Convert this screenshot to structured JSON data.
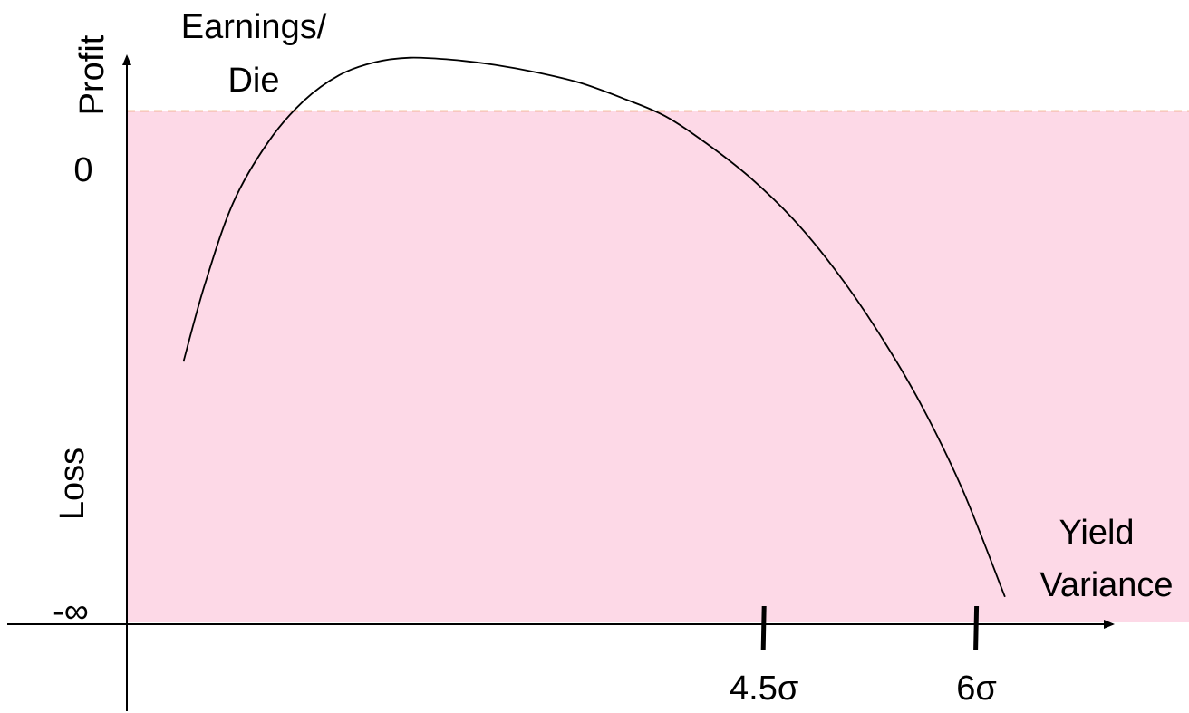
{
  "chart_data": {
    "type": "line",
    "y_title": [
      "Earnings/",
      "Die"
    ],
    "y_upper_label": "Profit",
    "y_lower_label": "Loss",
    "x_title": [
      "Yield",
      "Variance"
    ],
    "y_zero_label": "0",
    "y_bottom_label": "-∞",
    "x_ticks": [
      {
        "label": "4.5σ",
        "value": 4.5
      },
      {
        "label": "6σ",
        "value": 6
      }
    ],
    "x_range": [
      0,
      7.5
    ],
    "y_range": [
      -1,
      0.1
    ],
    "loss_region": {
      "from": -1,
      "to": 0,
      "color": "#fdd9e7"
    },
    "zero_line_color": "#e8904a",
    "series": [
      {
        "color": "#000000",
        "x": [
          0.4,
          0.55,
          0.75,
          1.0,
          1.25,
          1.5,
          1.75,
          2.0,
          2.3,
          2.6,
          2.9,
          3.2,
          3.5,
          3.8,
          4.1,
          4.4,
          4.7,
          5.0,
          5.3,
          5.6,
          5.9,
          6.2
        ],
        "y": [
          -0.49,
          -0.34,
          -0.18,
          -0.06,
          0.02,
          0.07,
          0.095,
          0.104,
          0.1,
          0.09,
          0.075,
          0.055,
          0.025,
          -0.01,
          -0.065,
          -0.13,
          -0.21,
          -0.31,
          -0.43,
          -0.57,
          -0.74,
          -0.95
        ]
      }
    ]
  }
}
